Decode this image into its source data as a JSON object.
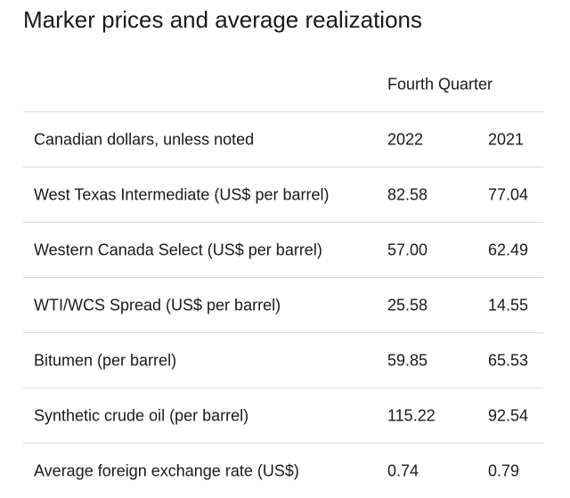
{
  "title": "Marker prices and average realizations",
  "table": {
    "group_header": "Fourth Quarter",
    "header": {
      "label": "Canadian dollars, unless noted",
      "col1": "2022",
      "col2": "2021"
    },
    "rows": [
      {
        "label": "West Texas Intermediate (US$ per barrel)",
        "v2022": "82.58",
        "v2021": "77.04"
      },
      {
        "label": "Western Canada Select (US$ per barrel)",
        "v2022": "57.00",
        "v2021": "62.49"
      },
      {
        "label": "WTI/WCS Spread (US$ per barrel)",
        "v2022": "25.58",
        "v2021": "14.55"
      },
      {
        "label": "Bitumen (per barrel)",
        "v2022": "59.85",
        "v2021": "65.53"
      },
      {
        "label": "Synthetic crude oil (per barrel)",
        "v2022": "115.22",
        "v2021": "92.54"
      },
      {
        "label": "Average foreign exchange rate (US$)",
        "v2022": "0.74",
        "v2021": "0.79"
      }
    ]
  }
}
